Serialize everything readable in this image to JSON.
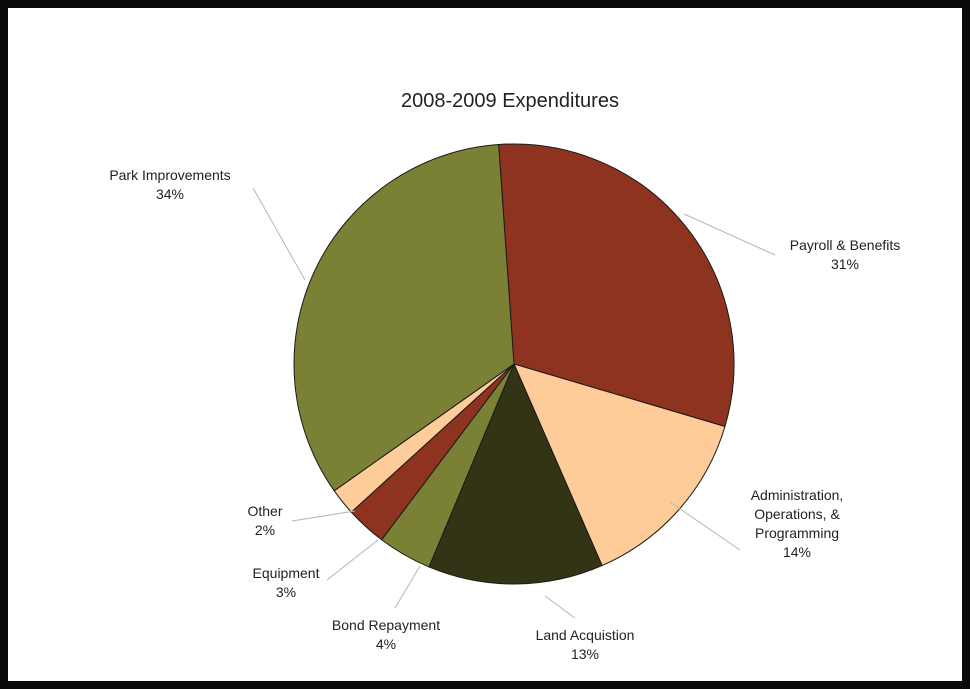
{
  "chart_data": {
    "type": "pie",
    "title": "2008-2009 Expenditures",
    "slices": [
      {
        "label": [
          "Payroll & Benefits"
        ],
        "percent_label": "31%",
        "value": 31,
        "color": "#8e3320"
      },
      {
        "label": [
          "Administration,",
          "Operations, &",
          "Programming"
        ],
        "percent_label": "14%",
        "value": 14,
        "color": "#fdcc98"
      },
      {
        "label": [
          "Land Acquistion"
        ],
        "percent_label": "13%",
        "value": 13,
        "color": "#323415"
      },
      {
        "label": [
          "Bond Repayment"
        ],
        "percent_label": "4%",
        "value": 4,
        "color": "#7b8134"
      },
      {
        "label": [
          "Equipment"
        ],
        "percent_label": "3%",
        "value": 3,
        "color": "#8e3320"
      },
      {
        "label": [
          "Other"
        ],
        "percent_label": "2%",
        "value": 2,
        "color": "#fdcc98"
      },
      {
        "label": [
          "Park Improvements"
        ],
        "percent_label": "34%",
        "value": 34,
        "color": "#7b8134"
      }
    ]
  }
}
